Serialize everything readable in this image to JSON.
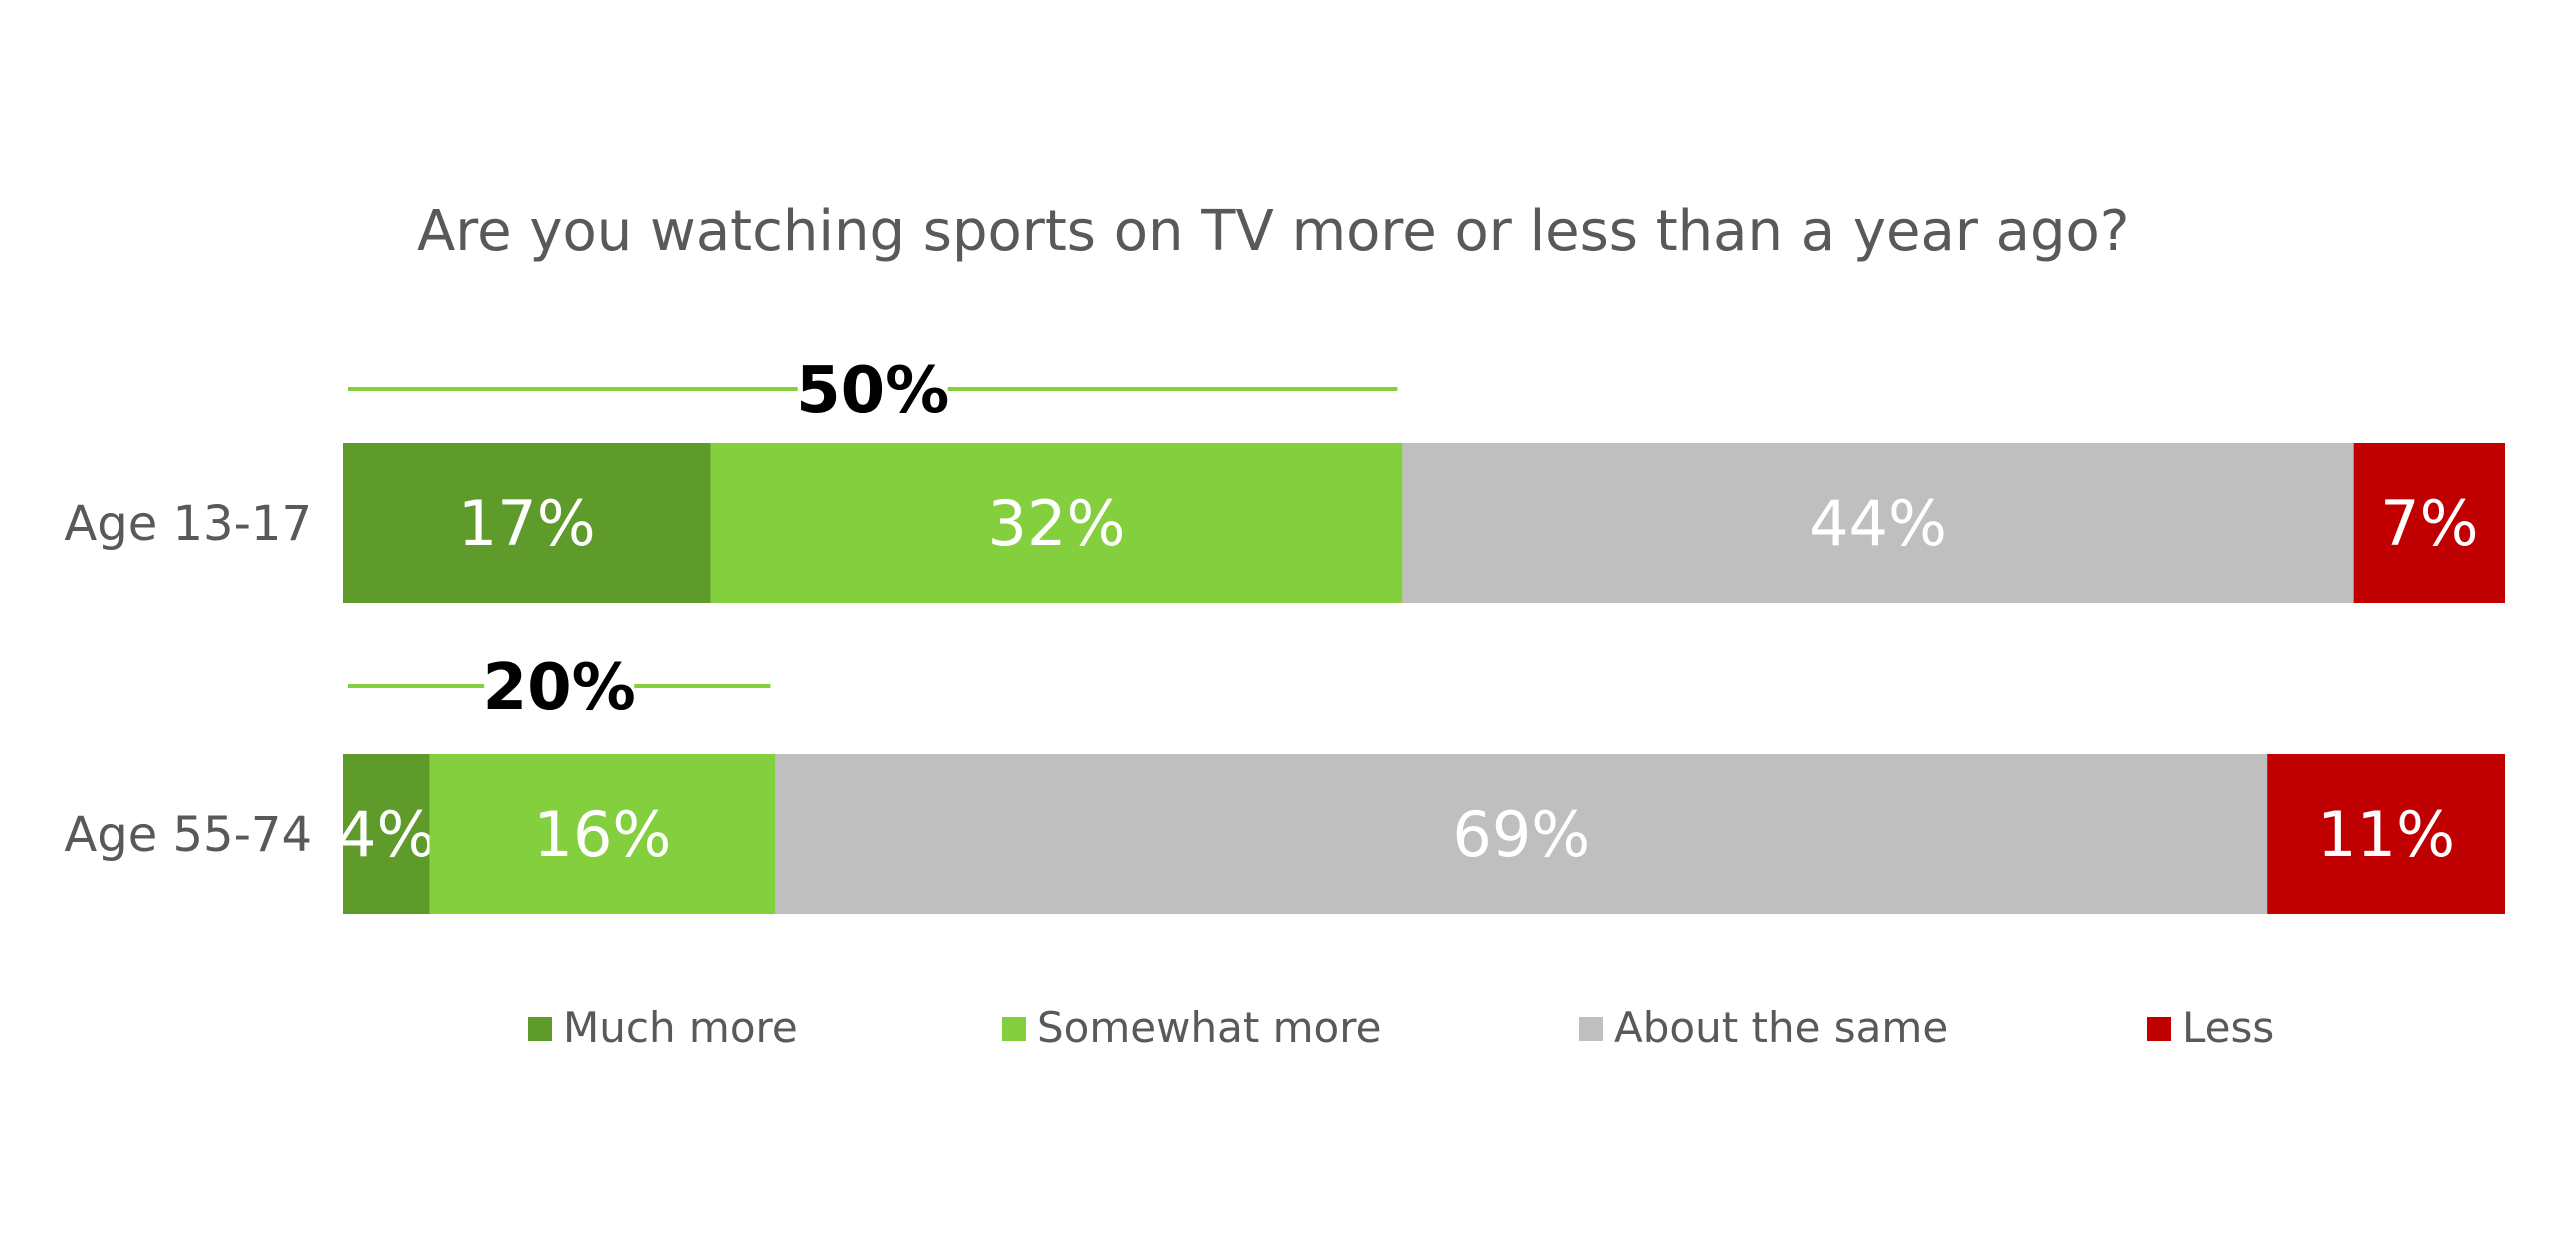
{
  "chart_data": {
    "type": "bar",
    "orientation": "horizontal",
    "stacked": true,
    "title": "Are you watching sports on TV more or less than a year ago?",
    "categories": [
      "Age 13-17",
      "Age 55-74"
    ],
    "series": [
      {
        "name": "Much more",
        "color": "#5f9b2a",
        "values": [
          17,
          4
        ],
        "labels": [
          "17%",
          "4%"
        ]
      },
      {
        "name": "Somewhat more",
        "color": "#84cf3d",
        "values": [
          32,
          16
        ],
        "labels": [
          "32%",
          "16%"
        ]
      },
      {
        "name": "About the same",
        "color": "#bfbfbf",
        "values": [
          44,
          69
        ],
        "labels": [
          "44%",
          "69%"
        ]
      },
      {
        "name": "Less",
        "color": "#c00000",
        "values": [
          7,
          11
        ],
        "labels": [
          "7%",
          "11%"
        ]
      }
    ],
    "group_totals": [
      {
        "label": "50%",
        "covers_series": [
          "Much more",
          "Somewhat more"
        ]
      },
      {
        "label": "20%",
        "covers_series": [
          "Much more",
          "Somewhat more"
        ]
      }
    ],
    "bracket_color": "#84cf3d",
    "xlim": [
      0,
      100
    ],
    "grid": false,
    "legend_position": "bottom"
  }
}
